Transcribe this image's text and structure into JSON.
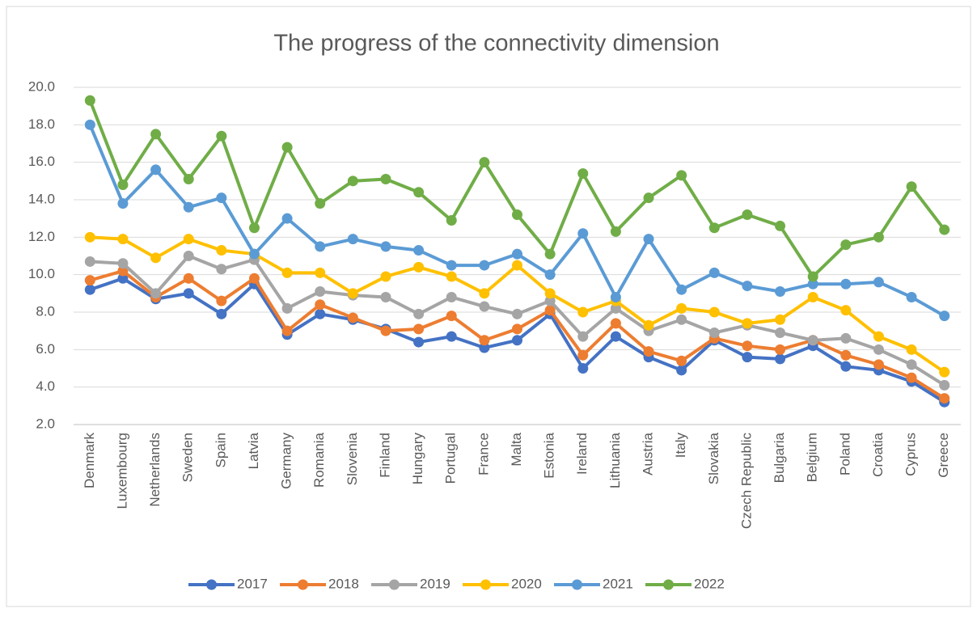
{
  "chart_data": {
    "type": "line",
    "title": "The progress of the connectivity dimension",
    "categories": [
      "Denmark",
      "Luxembourg",
      "Netherlands",
      "Sweden",
      "Spain",
      "Latvia",
      "Germany",
      "Romania",
      "Slovenia",
      "Finland",
      "Hungary",
      "Portugal",
      "France",
      "Malta",
      "Estonia",
      "Ireland",
      "Lithuania",
      "Austria",
      "Italy",
      "Slovakia",
      "Czech Republic",
      "Bulgaria",
      "Belgium",
      "Poland",
      "Croatia",
      "Cyprus",
      "Greece"
    ],
    "series": [
      {
        "name": "2017",
        "color": "#4472c4",
        "values": [
          9.2,
          9.8,
          8.7,
          9.0,
          7.9,
          9.5,
          6.8,
          7.9,
          7.6,
          7.1,
          6.4,
          6.7,
          6.1,
          6.5,
          7.9,
          5.0,
          6.7,
          5.6,
          4.9,
          6.5,
          5.6,
          5.5,
          6.2,
          5.1,
          4.9,
          4.3,
          3.2
        ]
      },
      {
        "name": "2018",
        "color": "#ed7d31",
        "values": [
          9.7,
          10.2,
          8.8,
          9.8,
          8.6,
          9.8,
          7.0,
          8.4,
          7.7,
          7.0,
          7.1,
          7.8,
          6.5,
          7.1,
          8.1,
          5.7,
          7.4,
          5.9,
          5.4,
          6.6,
          6.2,
          6.0,
          6.5,
          5.7,
          5.2,
          4.5,
          3.4
        ]
      },
      {
        "name": "2019",
        "color": "#a5a5a5",
        "values": [
          10.7,
          10.6,
          9.0,
          11.0,
          10.3,
          10.8,
          8.2,
          9.1,
          8.9,
          8.8,
          7.9,
          8.8,
          8.3,
          7.9,
          8.6,
          6.7,
          8.2,
          7.0,
          7.6,
          6.9,
          7.3,
          6.9,
          6.5,
          6.6,
          6.0,
          5.2,
          4.1
        ]
      },
      {
        "name": "2020",
        "color": "#ffc000",
        "values": [
          12.0,
          11.9,
          10.9,
          11.9,
          11.3,
          11.1,
          10.1,
          10.1,
          9.0,
          9.9,
          10.4,
          9.9,
          9.0,
          10.5,
          9.0,
          8.0,
          8.6,
          7.3,
          8.2,
          8.0,
          7.4,
          7.6,
          8.8,
          8.1,
          6.7,
          6.0,
          4.8
        ]
      },
      {
        "name": "2021",
        "color": "#5b9bd5",
        "values": [
          18.0,
          13.8,
          15.6,
          13.6,
          14.1,
          11.1,
          13.0,
          11.5,
          11.9,
          11.5,
          11.3,
          10.5,
          10.5,
          11.1,
          10.0,
          12.2,
          8.8,
          11.9,
          9.2,
          10.1,
          9.4,
          9.1,
          9.5,
          9.5,
          9.6,
          8.8,
          7.8
        ]
      },
      {
        "name": "2022",
        "color": "#70ad47",
        "values": [
          19.3,
          14.8,
          17.5,
          15.1,
          17.4,
          12.5,
          16.8,
          13.8,
          15.0,
          15.1,
          14.4,
          12.9,
          16.0,
          13.2,
          11.1,
          15.4,
          12.3,
          14.1,
          15.3,
          12.5,
          13.2,
          12.6,
          9.9,
          11.6,
          12.0,
          14.7,
          12.4
        ]
      }
    ],
    "ylim": [
      2,
      20
    ],
    "yticks": [
      {
        "value": 2,
        "label": "2.0"
      },
      {
        "value": 4,
        "label": "4.0"
      },
      {
        "value": 6,
        "label": "6.0"
      },
      {
        "value": 8,
        "label": "8.0"
      },
      {
        "value": 10,
        "label": "10.0"
      },
      {
        "value": 12,
        "label": "12.0"
      },
      {
        "value": 14,
        "label": "14.0"
      },
      {
        "value": 16,
        "label": "16.0"
      },
      {
        "value": 18,
        "label": "18.0"
      },
      {
        "value": 20,
        "label": "20.0"
      }
    ],
    "grid": true,
    "legend": "bottom"
  }
}
